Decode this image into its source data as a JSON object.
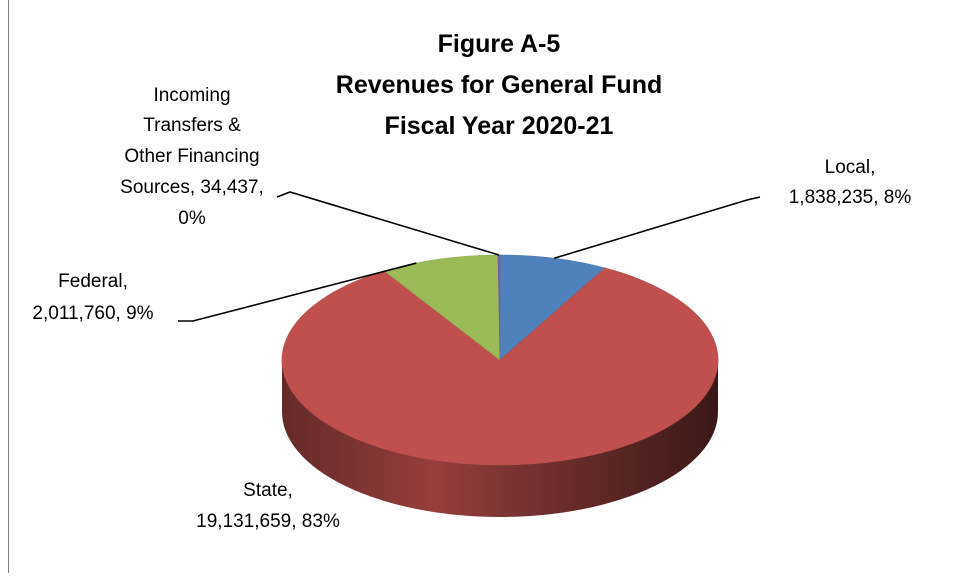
{
  "chart_data": {
    "type": "pie",
    "style": "3d",
    "title_lines": [
      "Figure A-5",
      "Revenues for General Fund",
      "Fiscal Year 2020-21"
    ],
    "slices": [
      {
        "name": "Local",
        "value": 1838235,
        "percent": "8%",
        "color": "#4f81bd",
        "label_lines": [
          "Local,",
          "1,838,235, 8%"
        ]
      },
      {
        "name": "State",
        "value": 19131659,
        "percent": "83%",
        "color": "#c0504d",
        "label_lines": [
          "State,",
          "19,131,659, 83%"
        ]
      },
      {
        "name": "Federal",
        "value": 2011760,
        "percent": "9%",
        "color": "#9bbb59",
        "label_lines": [
          "Federal,",
          "2,011,760, 9%"
        ]
      },
      {
        "name": "Incoming Transfers & Other Financing Sources",
        "value": 34437,
        "percent": "0%",
        "color": "#8064a2",
        "label_lines": [
          "Incoming",
          "Transfers &",
          "Other Financing",
          "Sources, 34,437,",
          "0%"
        ]
      }
    ],
    "legend": "none"
  }
}
